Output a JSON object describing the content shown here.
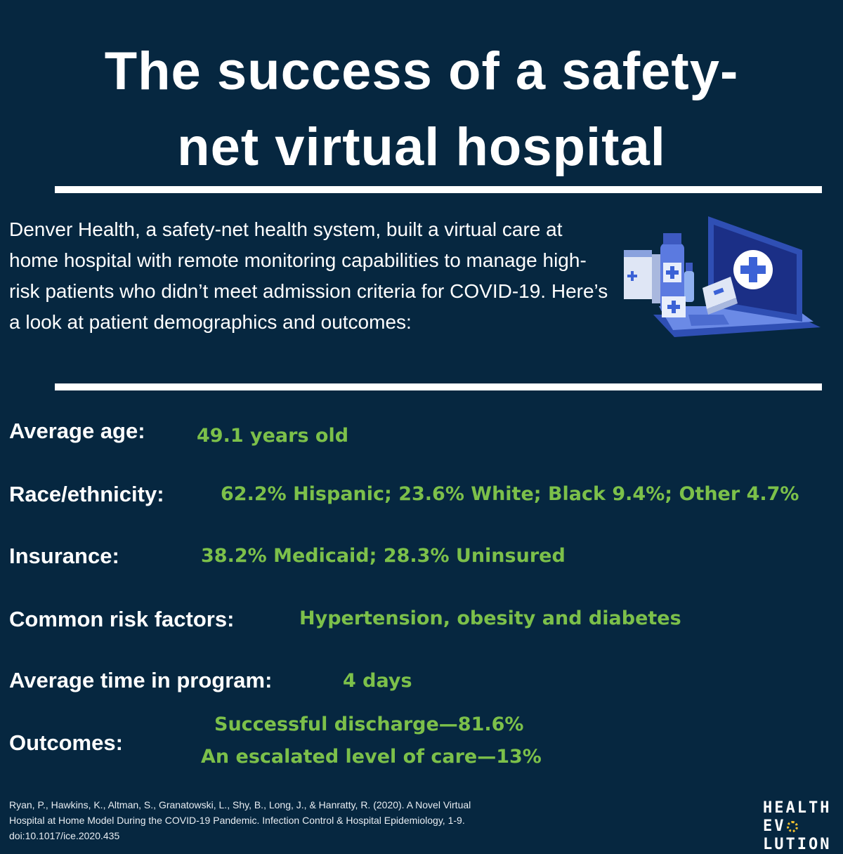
{
  "title": {
    "line1": "The success of a safety-",
    "line2": "net virtual hospital"
  },
  "intro": "Denver Health, a safety-net health system, built a virtual care at home hospital with remote monitoring capabilities to manage high-risk patients who didn’t meet admission criteria for COVID-19. Here’s a look at patient demographics and outcomes:",
  "illustration": {
    "icon": "laptop-medical-icon"
  },
  "stats": {
    "age": {
      "label": "Average age:",
      "value": "49.1 years old"
    },
    "race": {
      "label": "Race/ethnicity:",
      "value": "62.2% Hispanic; 23.6% White; Black 9.4%; Other 4.7%"
    },
    "insurance": {
      "label": "Insurance:",
      "value": "38.2% Medicaid; 28.3% Uninsured"
    },
    "risk": {
      "label": "Common risk factors:",
      "value": "Hypertension, obesity and diabetes"
    },
    "time": {
      "label": "Average time in program:",
      "value": "4 days"
    },
    "outcomes": {
      "label": "Outcomes:",
      "value1": "Successful discharge—81.6%",
      "value2": "An escalated level of care—13%"
    }
  },
  "citation": {
    "line1": "Ryan, P., Hawkins, K., Altman, S., Granatowski, L., Shy, B., Long, J., & Hanratty, R. (2020). A Novel Virtual",
    "line2": "Hospital at Home Model During the COVID-19 Pandemic. Infection Control & Hospital Epidemiology, 1-9.",
    "line3": "doi:10.1017/ice.2020.435"
  },
  "brand": {
    "line1": "HEALTH",
    "line2_a": "EV",
    "line2_b": "LUTION"
  },
  "colors": {
    "background": "#062740",
    "accent": "#7cc04a",
    "text": "#ffffff"
  }
}
